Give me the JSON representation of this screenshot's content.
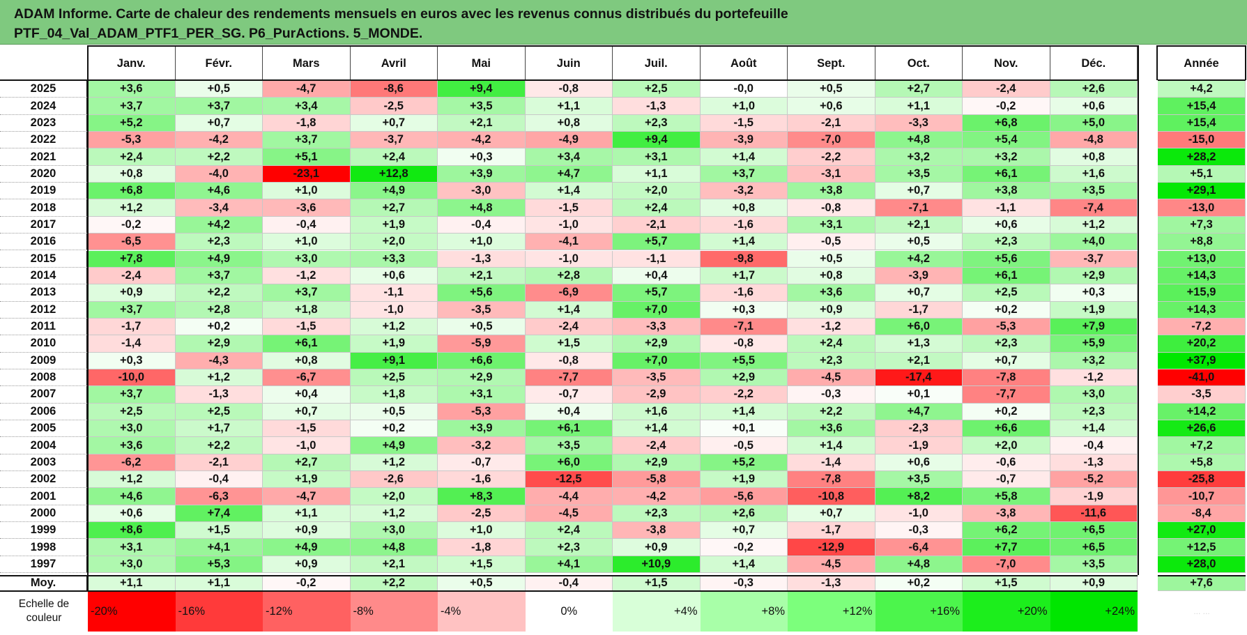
{
  "title": {
    "line1": "ADAM Informe. Carte de chaleur des rendements mensuels en euros avec les revenus connus distribués du portefeuille",
    "line2": "PTF_04_Val_ADAM_PTF1_PER_SG. P6_PurActions. 5_MONDE."
  },
  "colors": {
    "title_bg": "#7fc97f",
    "negative_max": "#ff0000",
    "positive_max": "#00e600",
    "neutral": "#ffffff"
  },
  "chart_data": {
    "type": "heatmap",
    "months": [
      "Janv.",
      "Févr.",
      "Mars",
      "Avril",
      "Mai",
      "Juin",
      "Juil.",
      "Août",
      "Sept.",
      "Oct.",
      "Nov.",
      "Déc."
    ],
    "annual_label": "Année",
    "rows": [
      {
        "year": "2025",
        "values": [
          "+3,6",
          "+0,5",
          "-4,7",
          "-8,6",
          "+9,4",
          "-0,8",
          "+2,5",
          "-0,0",
          "+0,5",
          "+2,7",
          "-2,4",
          "+2,6"
        ],
        "annual": "+4,2"
      },
      {
        "year": "2024",
        "values": [
          "+3,7",
          "+3,7",
          "+3,4",
          "-2,5",
          "+3,5",
          "+1,1",
          "-1,3",
          "+1,0",
          "+0,6",
          "+1,1",
          "-0,2",
          "+0,6"
        ],
        "annual": "+15,4"
      },
      {
        "year": "2023",
        "values": [
          "+5,2",
          "+0,7",
          "-1,8",
          "+0,7",
          "+2,1",
          "+0,8",
          "+2,3",
          "-1,5",
          "-2,1",
          "-3,3",
          "+6,8",
          "+5,0"
        ],
        "annual": "+15,4"
      },
      {
        "year": "2022",
        "values": [
          "-5,3",
          "-4,2",
          "+3,7",
          "-3,7",
          "-4,2",
          "-4,9",
          "+9,4",
          "-3,9",
          "-7,0",
          "+4,8",
          "+5,4",
          "-4,8"
        ],
        "annual": "-15,0"
      },
      {
        "year": "2021",
        "values": [
          "+2,4",
          "+2,2",
          "+5,1",
          "+2,4",
          "+0,3",
          "+3,4",
          "+3,1",
          "+1,4",
          "-2,2",
          "+3,2",
          "+3,2",
          "+0,8"
        ],
        "annual": "+28,2"
      },
      {
        "year": "2020",
        "values": [
          "+0,8",
          "-4,0",
          "-23,1",
          "+12,8",
          "+3,9",
          "+4,7",
          "+1,1",
          "+3,7",
          "-3,1",
          "+3,5",
          "+6,1",
          "+1,6"
        ],
        "annual": "+5,1"
      },
      {
        "year": "2019",
        "values": [
          "+6,8",
          "+4,6",
          "+1,0",
          "+4,9",
          "-3,0",
          "+1,4",
          "+2,0",
          "-3,2",
          "+3,8",
          "+0,7",
          "+3,8",
          "+3,5"
        ],
        "annual": "+29,1"
      },
      {
        "year": "2018",
        "values": [
          "+1,2",
          "-3,4",
          "-3,6",
          "+2,7",
          "+4,8",
          "-1,5",
          "+2,4",
          "+0,8",
          "-0,8",
          "-7,1",
          "-1,1",
          "-7,4"
        ],
        "annual": "-13,0"
      },
      {
        "year": "2017",
        "values": [
          "-0,2",
          "+4,2",
          "-0,4",
          "+1,9",
          "-0,4",
          "-1,0",
          "-2,1",
          "-1,6",
          "+3,1",
          "+2,1",
          "+0,6",
          "+1,2"
        ],
        "annual": "+7,3"
      },
      {
        "year": "2016",
        "values": [
          "-6,5",
          "+2,3",
          "+1,0",
          "+2,0",
          "+1,0",
          "-4,1",
          "+5,7",
          "+1,4",
          "-0,5",
          "+0,5",
          "+2,3",
          "+4,0"
        ],
        "annual": "+8,8"
      },
      {
        "year": "2015",
        "values": [
          "+7,8",
          "+4,9",
          "+3,0",
          "+3,3",
          "-1,3",
          "-1,0",
          "-1,1",
          "-9,8",
          "+0,5",
          "+4,2",
          "+5,6",
          "-3,7"
        ],
        "annual": "+13,0"
      },
      {
        "year": "2014",
        "values": [
          "-2,4",
          "+3,7",
          "-1,2",
          "+0,6",
          "+2,1",
          "+2,8",
          "+0,4",
          "+1,7",
          "+0,8",
          "-3,9",
          "+6,1",
          "+2,9"
        ],
        "annual": "+14,3"
      },
      {
        "year": "2013",
        "values": [
          "+0,9",
          "+2,2",
          "+3,7",
          "-1,1",
          "+5,6",
          "-6,9",
          "+5,7",
          "-1,6",
          "+3,6",
          "+0,7",
          "+2,5",
          "+0,3"
        ],
        "annual": "+15,9"
      },
      {
        "year": "2012",
        "values": [
          "+3,7",
          "+2,8",
          "+1,8",
          "-1,0",
          "-3,5",
          "+1,4",
          "+7,0",
          "+0,3",
          "+0,9",
          "-1,7",
          "+0,2",
          "+1,9"
        ],
        "annual": "+14,3"
      },
      {
        "year": "2011",
        "values": [
          "-1,7",
          "+0,2",
          "-1,5",
          "+1,2",
          "+0,5",
          "-2,4",
          "-3,3",
          "-7,1",
          "-1,2",
          "+6,0",
          "-5,3",
          "+7,9"
        ],
        "annual": "-7,2"
      },
      {
        "year": "2010",
        "values": [
          "-1,4",
          "+2,9",
          "+6,1",
          "+1,9",
          "-5,9",
          "+1,5",
          "+2,9",
          "-0,8",
          "+2,4",
          "+1,3",
          "+2,3",
          "+5,9"
        ],
        "annual": "+20,2"
      },
      {
        "year": "2009",
        "values": [
          "+0,3",
          "-4,3",
          "+0,8",
          "+9,1",
          "+6,6",
          "-0,8",
          "+7,0",
          "+5,5",
          "+2,3",
          "+2,1",
          "+0,7",
          "+3,2"
        ],
        "annual": "+37,9"
      },
      {
        "year": "2008",
        "values": [
          "-10,0",
          "+1,2",
          "-6,7",
          "+2,5",
          "+2,9",
          "-7,7",
          "-3,5",
          "+2,9",
          "-4,5",
          "-17,4",
          "-7,8",
          "-1,2"
        ],
        "annual": "-41,0"
      },
      {
        "year": "2007",
        "values": [
          "+3,7",
          "-1,3",
          "+0,4",
          "+1,8",
          "+3,1",
          "-0,7",
          "-2,9",
          "-2,2",
          "-0,3",
          "+0,1",
          "-7,7",
          "+3,0"
        ],
        "annual": "-3,5"
      },
      {
        "year": "2006",
        "values": [
          "+2,5",
          "+2,5",
          "+0,7",
          "+0,5",
          "-5,3",
          "+0,4",
          "+1,6",
          "+1,4",
          "+2,2",
          "+4,7",
          "+0,2",
          "+2,3"
        ],
        "annual": "+14,2"
      },
      {
        "year": "2005",
        "values": [
          "+3,0",
          "+1,7",
          "-1,5",
          "+0,2",
          "+3,9",
          "+6,1",
          "+1,4",
          "+0,1",
          "+3,6",
          "-2,3",
          "+6,6",
          "+1,4"
        ],
        "annual": "+26,6"
      },
      {
        "year": "2004",
        "values": [
          "+3,6",
          "+2,2",
          "-1,0",
          "+4,9",
          "-3,2",
          "+3,5",
          "-2,4",
          "-0,5",
          "+1,4",
          "-1,9",
          "+2,0",
          "-0,4"
        ],
        "annual": "+7,2"
      },
      {
        "year": "2003",
        "values": [
          "-6,2",
          "-2,1",
          "+2,7",
          "+1,2",
          "-0,7",
          "+6,0",
          "+2,9",
          "+5,2",
          "-1,4",
          "+0,6",
          "-0,6",
          "-1,3"
        ],
        "annual": "+5,8"
      },
      {
        "year": "2002",
        "values": [
          "+1,2",
          "-0,4",
          "+1,9",
          "-2,6",
          "-1,6",
          "-12,5",
          "-5,8",
          "+1,9",
          "-7,8",
          "+3,5",
          "-0,7",
          "-5,2"
        ],
        "annual": "-25,8"
      },
      {
        "year": "2001",
        "values": [
          "+4,6",
          "-6,3",
          "-4,7",
          "+2,0",
          "+8,3",
          "-4,4",
          "-4,2",
          "-5,6",
          "-10,8",
          "+8,2",
          "+5,8",
          "-1,9"
        ],
        "annual": "-10,7"
      },
      {
        "year": "2000",
        "values": [
          "+0,6",
          "+7,4",
          "+1,1",
          "+1,2",
          "-2,5",
          "-4,5",
          "+2,3",
          "+2,6",
          "+0,7",
          "-1,0",
          "-3,8",
          "-11,6"
        ],
        "annual": "-8,4"
      },
      {
        "year": "1999",
        "values": [
          "+8,6",
          "+1,5",
          "+0,9",
          "+3,0",
          "+1,0",
          "+2,4",
          "-3,8",
          "+0,7",
          "-1,7",
          "-0,3",
          "+6,2",
          "+6,5"
        ],
        "annual": "+27,0"
      },
      {
        "year": "1998",
        "values": [
          "+3,1",
          "+4,1",
          "+4,9",
          "+4,8",
          "-1,8",
          "+2,3",
          "+0,9",
          "-0,2",
          "-12,9",
          "-6,4",
          "+7,7",
          "+6,5"
        ],
        "annual": "+12,5"
      },
      {
        "year": "1997",
        "values": [
          "+3,0",
          "+5,3",
          "+0,9",
          "+2,1",
          "+1,5",
          "+4,1",
          "+10,9",
          "+1,4",
          "-4,5",
          "+4,8",
          "-7,0",
          "+3,5"
        ],
        "annual": "+28,0"
      }
    ],
    "average": {
      "label": "Moy.",
      "values": [
        "+1,1",
        "+1,1",
        "-0,2",
        "+2,2",
        "+0,5",
        "-0,4",
        "+1,5",
        "-0,3",
        "-1,3",
        "+0,2",
        "+1,5",
        "+0,9"
      ],
      "annual": "+7,6"
    },
    "scale": {
      "label_line1": "Echelle de",
      "label_line2": "couleur",
      "steps": [
        "-20%",
        "-16%",
        "-12%",
        "-8%",
        "-4%",
        "0%",
        "+4%",
        "+8%",
        "+12%",
        "+16%",
        "+20%",
        "+24%"
      ],
      "annual_step": "... ..."
    }
  }
}
